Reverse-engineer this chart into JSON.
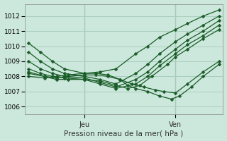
{
  "title": "",
  "xlabel": "Pression niveau de la mer( hPa )",
  "ylabel": "",
  "ylim": [
    1005.5,
    1012.8
  ],
  "xlim": [
    -1,
    49
  ],
  "background_color": "#cce8dc",
  "grid_color": "#aacfbe",
  "line_color": "#1a5c28",
  "marker_color": "#1a5c28",
  "jeu_x": 14,
  "ven_x": 37,
  "yticks": [
    1006,
    1007,
    1008,
    1009,
    1010,
    1011,
    1012
  ],
  "series": [
    {
      "pts": [
        [
          0,
          1010.2
        ],
        [
          3,
          1009.6
        ],
        [
          6,
          1009.0
        ],
        [
          9,
          1008.5
        ],
        [
          14,
          1008.2
        ],
        [
          18,
          1008.3
        ],
        [
          22,
          1008.5
        ],
        [
          27,
          1009.5
        ],
        [
          30,
          1010.0
        ],
        [
          33,
          1010.6
        ],
        [
          37,
          1011.1
        ],
        [
          40,
          1011.5
        ],
        [
          44,
          1012.0
        ],
        [
          48,
          1012.4
        ]
      ]
    },
    {
      "pts": [
        [
          0,
          1009.6
        ],
        [
          3,
          1009.0
        ],
        [
          6,
          1008.5
        ],
        [
          9,
          1008.2
        ],
        [
          14,
          1008.0
        ],
        [
          18,
          1007.8
        ],
        [
          22,
          1007.5
        ],
        [
          27,
          1008.2
        ],
        [
          30,
          1008.8
        ],
        [
          33,
          1009.5
        ],
        [
          37,
          1010.3
        ],
        [
          40,
          1010.8
        ],
        [
          44,
          1011.4
        ],
        [
          48,
          1012.0
        ]
      ]
    },
    {
      "pts": [
        [
          0,
          1009.0
        ],
        [
          3,
          1008.5
        ],
        [
          6,
          1008.2
        ],
        [
          9,
          1008.0
        ],
        [
          14,
          1007.9
        ],
        [
          18,
          1007.6
        ],
        [
          22,
          1007.3
        ],
        [
          27,
          1007.8
        ],
        [
          30,
          1008.3
        ],
        [
          33,
          1009.0
        ],
        [
          37,
          1009.8
        ],
        [
          40,
          1010.4
        ],
        [
          44,
          1011.0
        ],
        [
          48,
          1011.7
        ]
      ]
    },
    {
      "pts": [
        [
          0,
          1008.5
        ],
        [
          3,
          1008.2
        ],
        [
          6,
          1008.0
        ],
        [
          9,
          1007.9
        ],
        [
          14,
          1007.8
        ],
        [
          18,
          1007.5
        ],
        [
          22,
          1007.2
        ],
        [
          27,
          1007.5
        ],
        [
          30,
          1008.0
        ],
        [
          33,
          1008.7
        ],
        [
          37,
          1009.5
        ],
        [
          40,
          1010.1
        ],
        [
          44,
          1010.7
        ],
        [
          48,
          1011.4
        ]
      ]
    },
    {
      "pts": [
        [
          0,
          1008.3
        ],
        [
          4,
          1008.0
        ],
        [
          7,
          1007.8
        ],
        [
          10,
          1007.8
        ],
        [
          14,
          1007.8
        ],
        [
          18,
          1007.7
        ],
        [
          22,
          1007.4
        ],
        [
          25,
          1007.2
        ],
        [
          28,
          1007.4
        ],
        [
          31,
          1008.0
        ],
        [
          35,
          1008.8
        ],
        [
          37,
          1009.3
        ],
        [
          40,
          1009.8
        ],
        [
          44,
          1010.5
        ],
        [
          48,
          1011.1
        ]
      ]
    },
    {
      "pts": [
        [
          0,
          1008.2
        ],
        [
          4,
          1008.0
        ],
        [
          7,
          1007.9
        ],
        [
          10,
          1008.0
        ],
        [
          14,
          1008.1
        ],
        [
          17,
          1008.1
        ],
        [
          20,
          1008.0
        ],
        [
          23,
          1007.8
        ],
        [
          26,
          1007.5
        ],
        [
          29,
          1007.3
        ],
        [
          32,
          1007.1
        ],
        [
          34,
          1007.0
        ],
        [
          37,
          1006.9
        ],
        [
          40,
          1007.5
        ],
        [
          44,
          1008.3
        ],
        [
          48,
          1009.0
        ]
      ]
    },
    {
      "pts": [
        [
          0,
          1008.0
        ],
        [
          4,
          1007.9
        ],
        [
          7,
          1008.0
        ],
        [
          10,
          1008.1
        ],
        [
          14,
          1008.2
        ],
        [
          17,
          1008.2
        ],
        [
          20,
          1008.1
        ],
        [
          23,
          1007.8
        ],
        [
          25,
          1007.4
        ],
        [
          27,
          1007.2
        ],
        [
          30,
          1007.0
        ],
        [
          33,
          1006.7
        ],
        [
          36,
          1006.5
        ],
        [
          38,
          1006.7
        ],
        [
          41,
          1007.3
        ],
        [
          44,
          1008.0
        ],
        [
          48,
          1008.8
        ]
      ]
    }
  ]
}
